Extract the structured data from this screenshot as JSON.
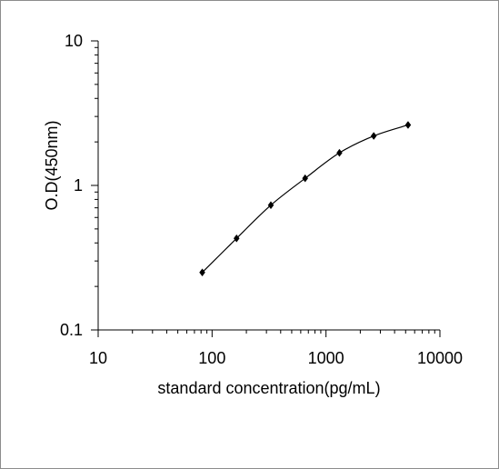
{
  "chart_data": {
    "type": "scatter",
    "title": "",
    "xlabel": "standard concentration(pg/mL)",
    "ylabel": "O.D(450nm)",
    "x_scale": "log",
    "y_scale": "log",
    "xlim": [
      10,
      10000
    ],
    "ylim": [
      0.1,
      10
    ],
    "x_ticks": [
      "10",
      "100",
      "1000",
      "10000"
    ],
    "y_ticks": [
      "0.1",
      "1",
      "10"
    ],
    "grid": false,
    "legend": "none",
    "marker": "diamond",
    "line": "smooth",
    "colors": {
      "line": "#000000",
      "marker": "#000000"
    },
    "series": [
      {
        "x": [
          82,
          164,
          328,
          656,
          1312,
          2625,
          5250
        ],
        "y": [
          0.25,
          0.43,
          0.73,
          1.12,
          1.68,
          2.2,
          2.62
        ]
      }
    ]
  }
}
